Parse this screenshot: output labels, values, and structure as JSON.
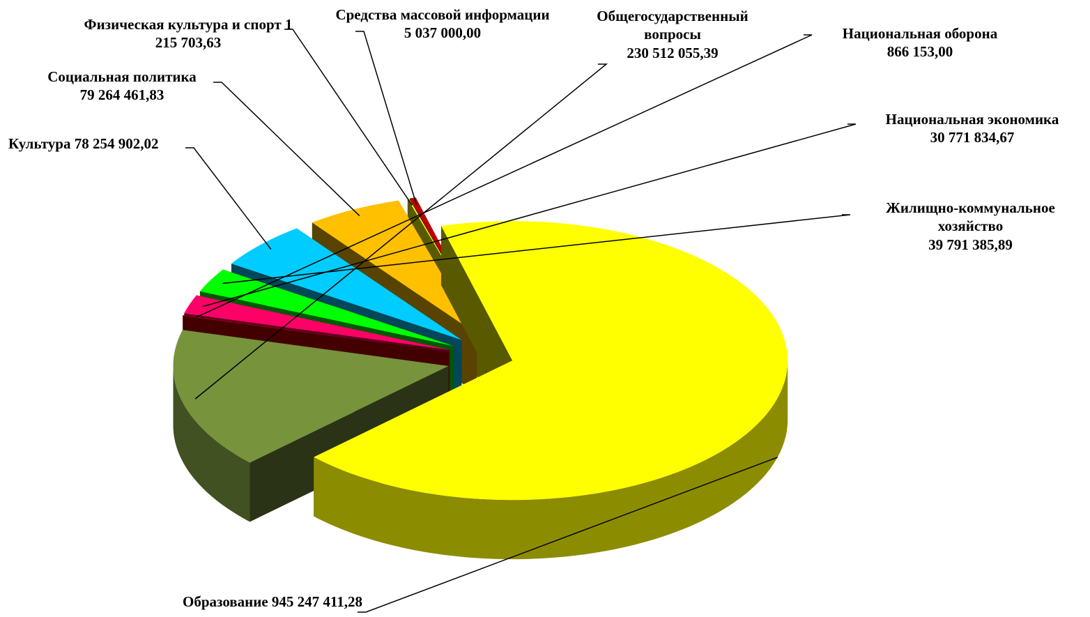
{
  "chart_data": {
    "type": "pie3d",
    "categories": [
      "Образование",
      "Общегосударственный вопросы",
      "Национальная оборона",
      "Национальная экономика",
      "Жилищно-коммунальное хозяйство",
      "Культура",
      "Социальная политика",
      "Физическая культура и спорт",
      "Средства массовой информации"
    ],
    "values": [
      945247411.28,
      230512055.39,
      866153.0,
      30771834.67,
      39791385.89,
      78254902.02,
      79264461.83,
      1215703.63,
      5037000.0
    ],
    "value_labels": [
      "945 247 411,28",
      "230 512 055,39",
      "866 153,00",
      "30 771 834,67",
      "39 791 385,89",
      "78 254 902,02",
      "79 264 461,83",
      "1 215 703,63",
      "5 037 000,00"
    ],
    "colors": [
      "#ffff00",
      "#77933c",
      "#c00000",
      "#ff0066",
      "#00ff00",
      "#00ccff",
      "#ffc000",
      "#ffff00",
      "#c00000"
    ]
  }
}
